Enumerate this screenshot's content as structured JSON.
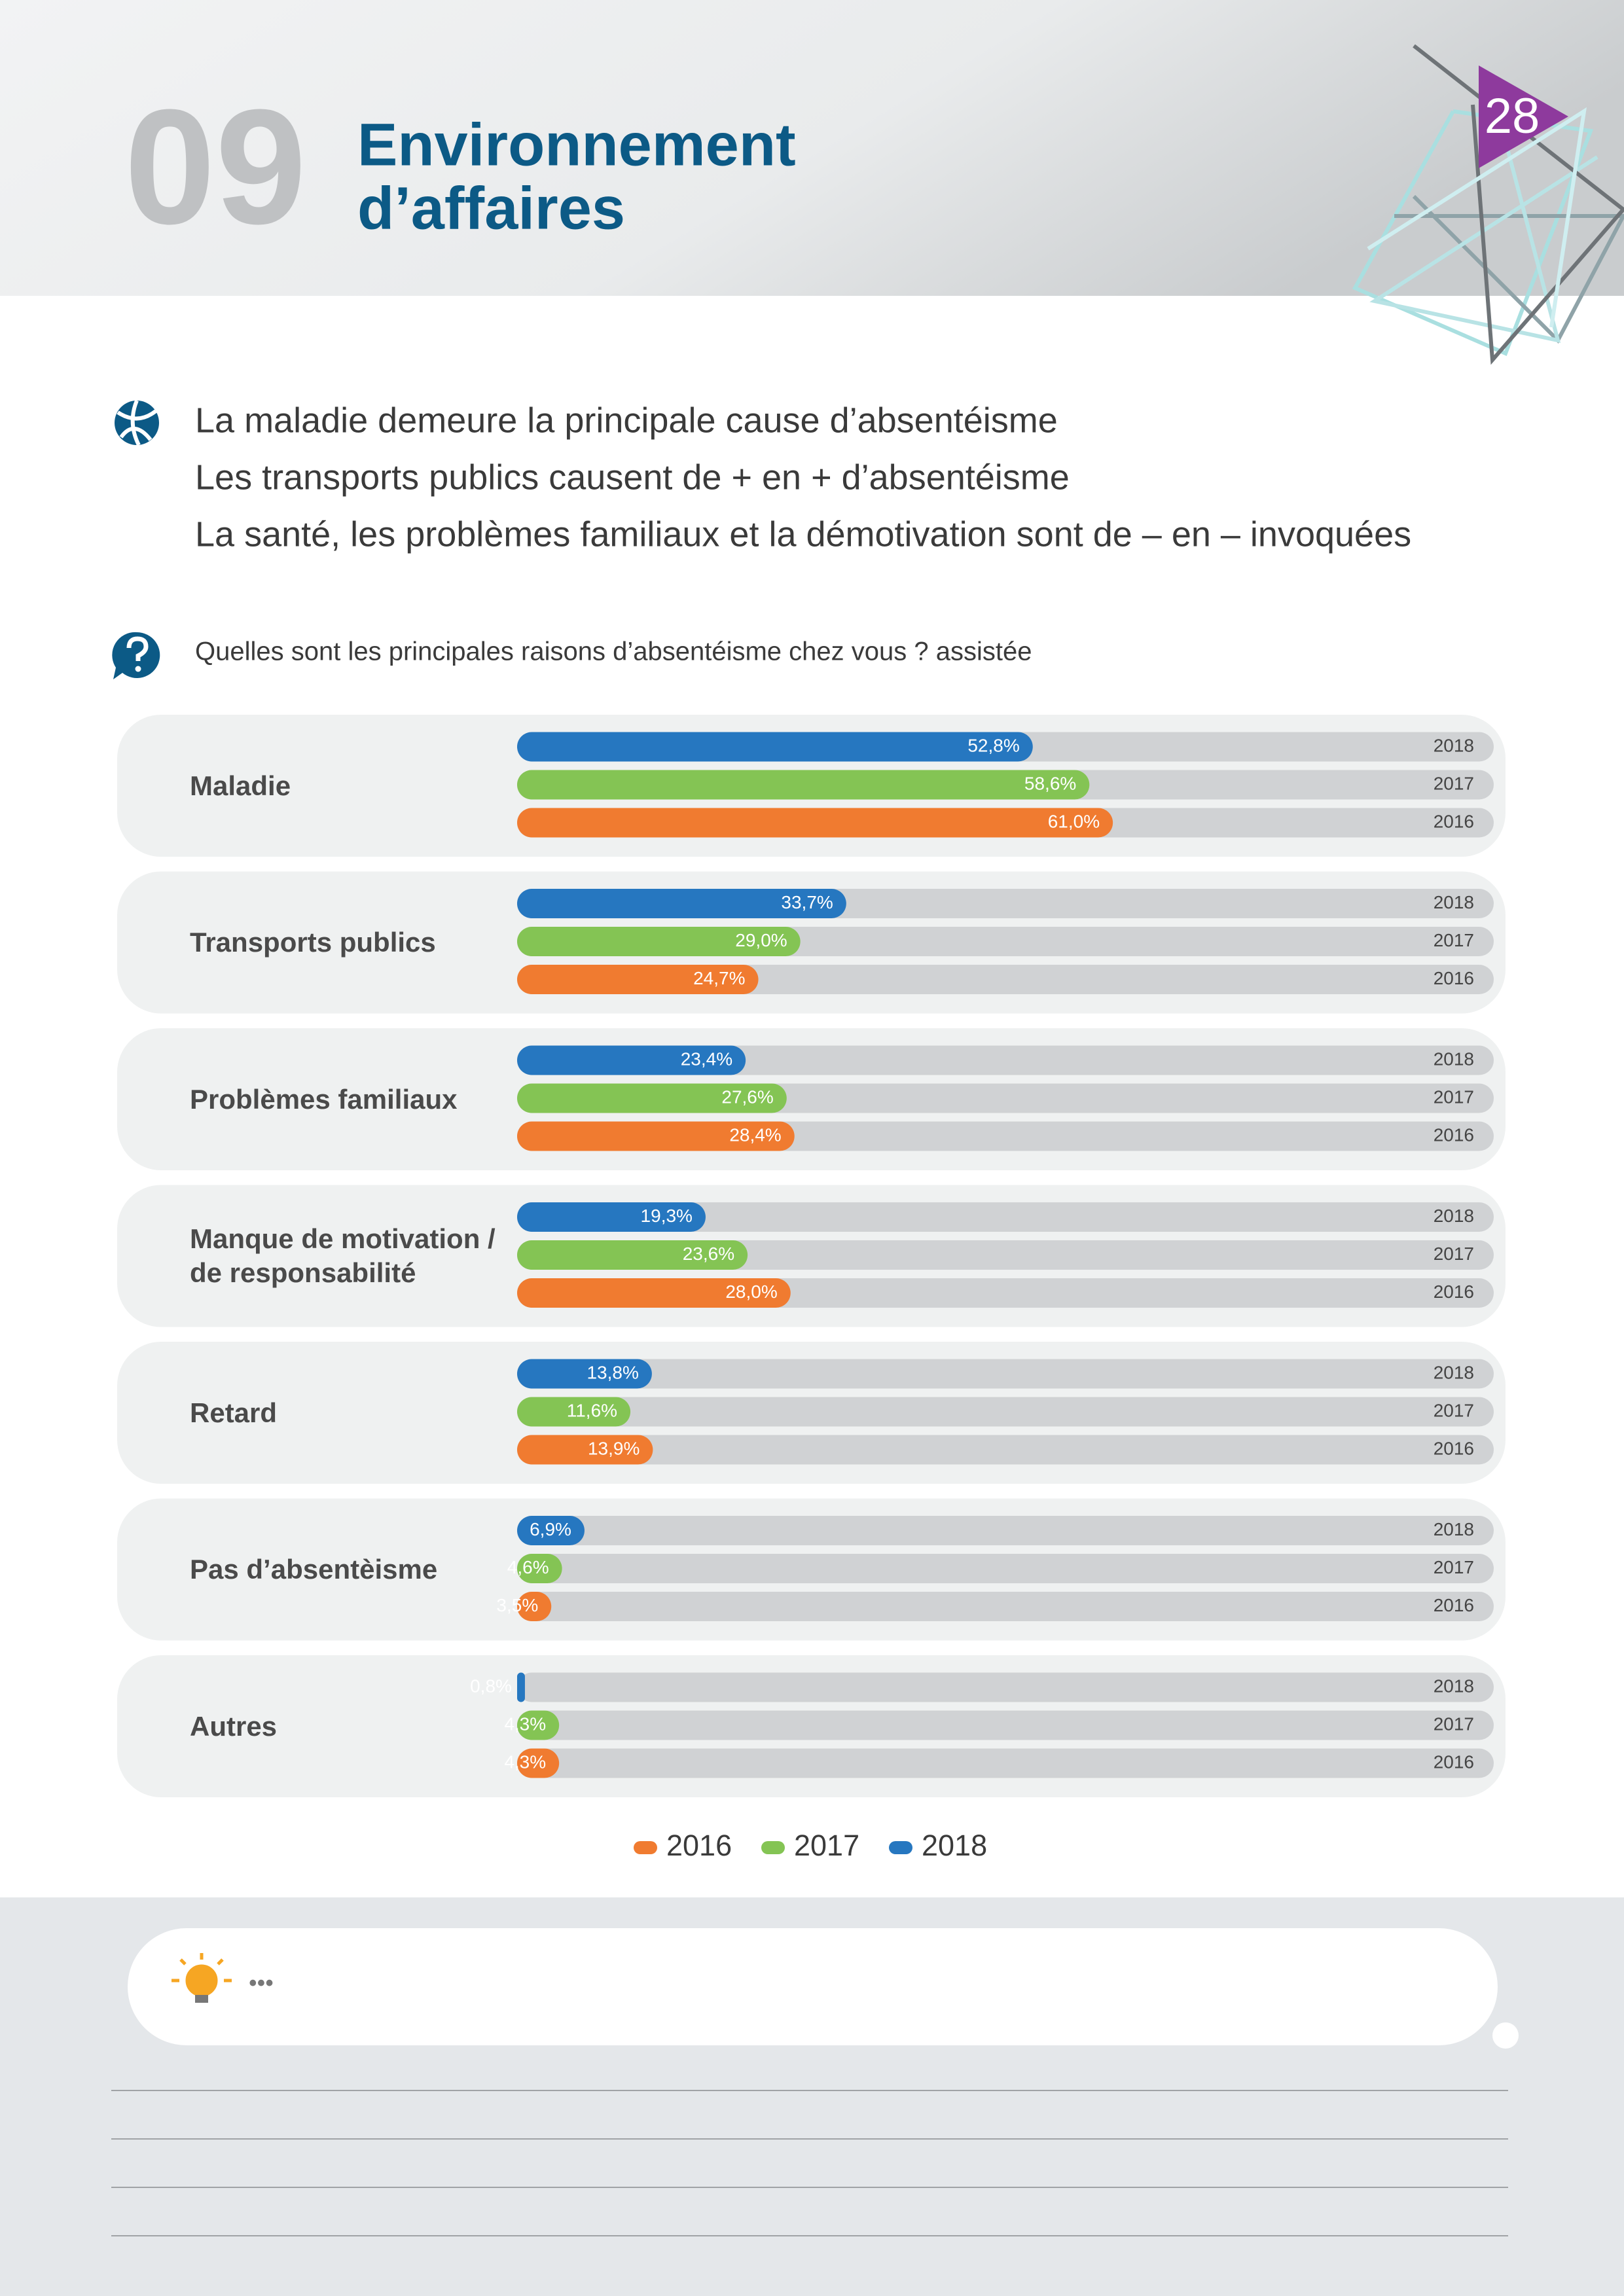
{
  "header": {
    "number": "09",
    "title": [
      "Environnement",
      "d’affaires"
    ],
    "page": "28"
  },
  "headlines": [
    "La maladie demeure la principale cause d’absentéisme",
    "Les transports publics causent de + en + d’absentéisme",
    "La santé, les problèmes familiaux et la démotivation sont de – en – invoquées"
  ],
  "question": "Quelles sont les principales raisons d’absentéisme chez vous ? assistée",
  "chart_data": {
    "type": "bar",
    "orientation": "horizontal",
    "categories": [
      "Maladie",
      "Transports publics",
      "Problèmes familiaux",
      "Manque de motivation / de responsabilité",
      "Retard",
      "Pas d’absentèisme",
      "Autres"
    ],
    "xlim": [
      0,
      100
    ],
    "series": [
      {
        "name": "2018",
        "color": "#2677c0",
        "values": [
          52.8,
          33.7,
          23.4,
          19.3,
          13.8,
          6.9,
          0.8
        ],
        "value_labels": [
          "52,8%",
          "33,7%",
          "23,4%",
          "19,3%",
          "13,8%",
          "6,9%",
          "0,8%"
        ]
      },
      {
        "name": "2017",
        "color": "#84c454",
        "values": [
          58.6,
          29.0,
          27.6,
          23.6,
          11.6,
          4.6,
          4.3
        ],
        "value_labels": [
          "58,6%",
          "29,0%",
          "27,6%",
          "23,6%",
          "11,6%",
          "4,6%",
          "4,3%"
        ]
      },
      {
        "name": "2016",
        "color": "#f07b30",
        "values": [
          61.0,
          24.7,
          28.4,
          28.0,
          13.9,
          3.5,
          4.3
        ],
        "value_labels": [
          "61,0%",
          "24,7%",
          "28,4%",
          "28,0%",
          "13,9%",
          "3,5%",
          "4,3%"
        ]
      }
    ],
    "track_color": "#d0d2d4",
    "legend": true
  },
  "footer": {
    "note": "•••"
  }
}
